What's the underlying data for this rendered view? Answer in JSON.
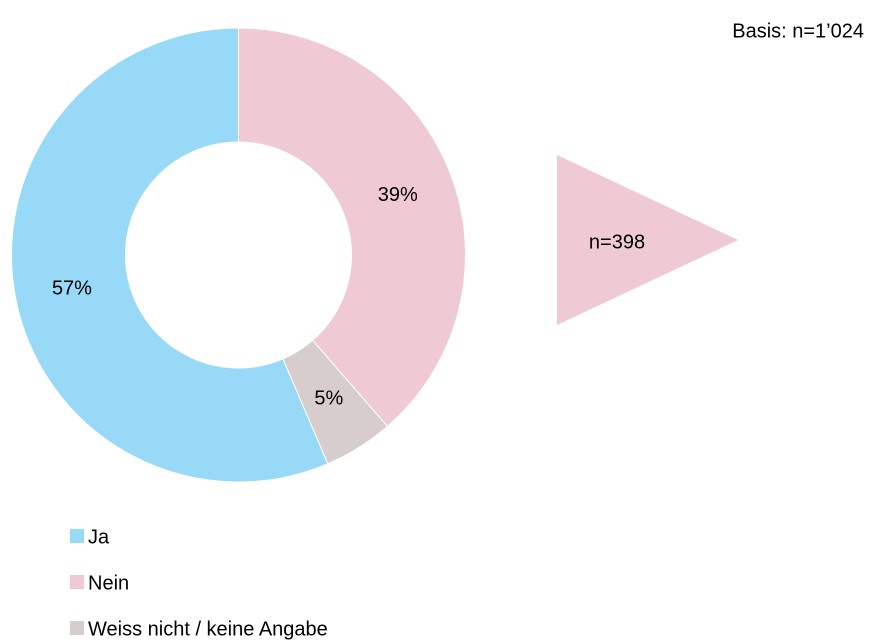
{
  "chart_data": {
    "type": "donut",
    "categories": [
      "Ja",
      "Nein",
      "Weiss nicht / keine Angabe"
    ],
    "values": [
      57,
      39,
      5
    ],
    "value_labels": [
      "57%",
      "39%",
      "5%"
    ],
    "colors": [
      "#97d9f6",
      "#efc9d4",
      "#d7cdcd"
    ],
    "annotations": [
      "Basis: n=1’024",
      "n=398"
    ],
    "legend": "bottom-left"
  }
}
